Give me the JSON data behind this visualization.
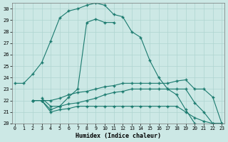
{
  "background_color": "#cce8e5",
  "grid_color": "#afd4d0",
  "line_color": "#1a7a6e",
  "xlabel": "Humidex (Indice chaleur)",
  "xlim": [
    -0.3,
    23.3
  ],
  "ylim": [
    20,
    30.5
  ],
  "yticks": [
    20,
    21,
    22,
    23,
    24,
    25,
    26,
    27,
    28,
    29,
    30
  ],
  "xticks": [
    0,
    1,
    2,
    3,
    4,
    5,
    6,
    7,
    8,
    9,
    10,
    11,
    12,
    13,
    14,
    15,
    16,
    17,
    18,
    19,
    20,
    21,
    22,
    23
  ],
  "curve1_x": [
    0,
    1,
    2,
    3,
    4,
    5,
    6,
    7,
    8,
    9,
    10,
    11,
    12,
    13,
    14,
    15,
    16,
    17,
    18,
    19,
    20,
    21,
    22,
    23
  ],
  "curve1_y": [
    23.5,
    23.5,
    24.3,
    25.3,
    27.2,
    29.2,
    29.8,
    30.0,
    30.3,
    30.5,
    30.3,
    29.5,
    29.3,
    28.0,
    27.5,
    25.5,
    24.0,
    23.0,
    22.5,
    21.2,
    20.0,
    null,
    null,
    null
  ],
  "curve2_x": [
    0,
    1,
    2,
    3,
    4,
    5,
    6,
    7,
    8,
    9,
    10,
    11,
    12,
    13,
    14,
    15,
    16,
    17,
    18,
    19,
    20,
    21,
    22,
    23
  ],
  "curve2_y": [
    null,
    null,
    null,
    22.2,
    21.5,
    21.5,
    22.3,
    23.0,
    28.8,
    29.1,
    28.8,
    28.8,
    null,
    null,
    null,
    null,
    null,
    null,
    null,
    null,
    null,
    null,
    null,
    null
  ],
  "curve3_x": [
    2,
    3,
    4,
    5,
    6,
    7,
    8,
    9,
    10,
    11,
    12,
    13,
    14,
    15,
    16,
    17,
    18,
    19,
    20,
    21,
    22,
    23
  ],
  "curve3_y": [
    22.0,
    22.0,
    22.0,
    22.2,
    22.5,
    22.7,
    22.8,
    23.0,
    23.2,
    23.3,
    23.5,
    23.5,
    23.5,
    23.5,
    23.5,
    23.5,
    23.7,
    23.8,
    23.0,
    23.0,
    22.3,
    20.0
  ],
  "curve4_x": [
    2,
    3,
    4,
    5,
    6,
    7,
    8,
    9,
    10,
    11,
    12,
    13,
    14,
    15,
    16,
    17,
    18,
    19,
    20,
    21,
    22,
    23
  ],
  "curve4_y": [
    22.0,
    22.0,
    21.2,
    21.5,
    21.7,
    21.8,
    22.0,
    22.2,
    22.5,
    22.7,
    22.8,
    23.0,
    23.0,
    23.0,
    23.0,
    23.0,
    23.0,
    23.0,
    21.8,
    21.0,
    20.0,
    20.0
  ],
  "curve5_x": [
    2,
    3,
    4,
    5,
    6,
    7,
    8,
    9,
    10,
    11,
    12,
    13,
    14,
    15,
    16,
    17,
    18,
    19,
    20,
    21,
    22,
    23
  ],
  "curve5_y": [
    22.0,
    22.0,
    21.0,
    21.2,
    21.3,
    21.5,
    21.5,
    21.5,
    21.5,
    21.5,
    21.5,
    21.5,
    21.5,
    21.5,
    21.5,
    21.5,
    21.5,
    21.0,
    20.5,
    20.2,
    20.0,
    20.0
  ]
}
